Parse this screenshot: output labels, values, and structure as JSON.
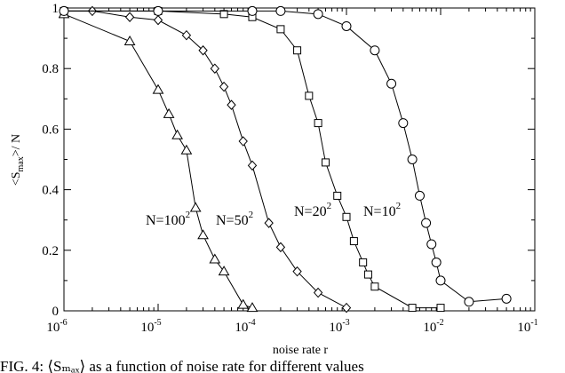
{
  "chart_data": {
    "type": "line",
    "xscale": "log",
    "xlim": [
      1e-06,
      0.1
    ],
    "ylim": [
      0,
      1
    ],
    "xlabel": "noise rate r",
    "ylabel": "<S_max>/ N",
    "x_ticks": [
      {
        "base": "10",
        "exp": "-6"
      },
      {
        "base": "10",
        "exp": "-5"
      },
      {
        "base": "10",
        "exp": "-4"
      },
      {
        "base": "10",
        "exp": "-3"
      },
      {
        "base": "10",
        "exp": "-2"
      },
      {
        "base": "10",
        "exp": "-1"
      }
    ],
    "y_ticks": [
      "0",
      "0.2",
      "0.4",
      "0.6",
      "0.8",
      "1"
    ],
    "legend": "inline labels",
    "grid": false,
    "series": [
      {
        "name": "N=100",
        "name_exp": "2",
        "marker": "triangle",
        "x": [
          1e-06,
          5e-06,
          1e-05,
          1.3e-05,
          1.6e-05,
          2e-05,
          2.5e-05,
          3e-05,
          4e-05,
          5e-05,
          8e-05,
          0.0001
        ],
        "y": [
          0.98,
          0.89,
          0.73,
          0.65,
          0.58,
          0.53,
          0.34,
          0.25,
          0.17,
          0.13,
          0.02,
          0.01
        ]
      },
      {
        "name": "N=50",
        "name_exp": "2",
        "marker": "diamond",
        "x": [
          1e-06,
          2e-06,
          5e-06,
          1e-05,
          2e-05,
          3e-05,
          4e-05,
          5e-05,
          6e-05,
          8e-05,
          0.0001,
          0.00015,
          0.0002,
          0.0003,
          0.0005,
          0.001
        ],
        "y": [
          0.99,
          0.99,
          0.97,
          0.96,
          0.91,
          0.86,
          0.8,
          0.74,
          0.68,
          0.56,
          0.48,
          0.29,
          0.21,
          0.13,
          0.06,
          0.01
        ]
      },
      {
        "name": "N=20",
        "name_exp": "2",
        "marker": "square",
        "x": [
          1e-06,
          1e-05,
          5e-05,
          0.0001,
          0.0002,
          0.0003,
          0.0004,
          0.0005,
          0.0006,
          0.0008,
          0.001,
          0.0012,
          0.0015,
          0.0017,
          0.002,
          0.005,
          0.01
        ],
        "y": [
          0.99,
          0.99,
          0.98,
          0.97,
          0.93,
          0.86,
          0.71,
          0.62,
          0.49,
          0.38,
          0.31,
          0.23,
          0.16,
          0.12,
          0.08,
          0.01,
          0.01
        ]
      },
      {
        "name": "N=10",
        "name_exp": "2",
        "marker": "circle",
        "x": [
          1e-06,
          1e-05,
          0.0001,
          0.0002,
          0.0005,
          0.001,
          0.002,
          0.003,
          0.004,
          0.005,
          0.006,
          0.007,
          0.008,
          0.009,
          0.01,
          0.02,
          0.05
        ],
        "y": [
          0.99,
          0.99,
          0.99,
          0.99,
          0.98,
          0.94,
          0.86,
          0.75,
          0.62,
          0.5,
          0.38,
          0.29,
          0.22,
          0.16,
          0.1,
          0.03,
          0.04
        ]
      }
    ]
  },
  "caption_text": "FIG. 4:  ⟨Sₘₐₓ⟩ as a function of noise rate for different values"
}
